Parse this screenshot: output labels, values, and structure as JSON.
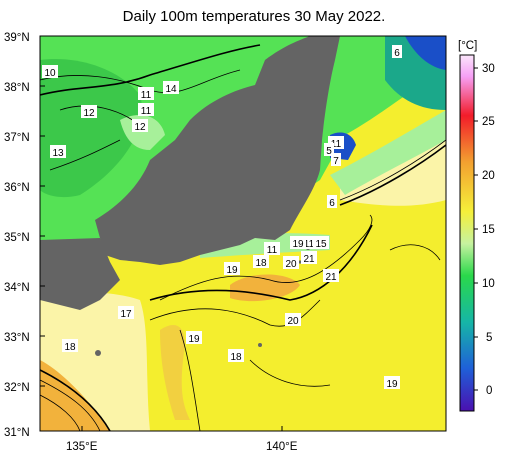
{
  "title": "Daily 100m temperatures 30 May 2022.",
  "map": {
    "lat_ticks": [
      "39°N",
      "38°N",
      "37°N",
      "36°N",
      "35°N",
      "34°N",
      "33°N",
      "32°N",
      "31°N"
    ],
    "lon_ticks": [
      "135°E",
      "140°E"
    ],
    "extent": {
      "lon_min": 134.3,
      "lon_max": 142.8,
      "lat_min": 31,
      "lat_max": 39
    }
  },
  "colorbar": {
    "unit": "[°C]",
    "ticks": [
      "30",
      "25",
      "20",
      "15",
      "10",
      "5",
      "0"
    ],
    "range": [
      -2,
      31
    ]
  },
  "contour_labels": [
    "6",
    "10",
    "11",
    "12",
    "11",
    "14",
    "12",
    "13",
    "11",
    "5",
    "7",
    "6",
    "11",
    "16",
    "11",
    "15",
    "19",
    "18",
    "18",
    "20",
    "21",
    "21",
    "20",
    "17",
    "19",
    "18",
    "19",
    "19"
  ],
  "colors": {
    "land": "#646464",
    "warm_yellow": "#f4ee2e",
    "pale_yellow": "#fbf4a8",
    "orange": "#f2b23c",
    "green": "#55e255",
    "light_green": "#a7f09a",
    "teal": "#1ba88a",
    "blue": "#1a4fc8"
  }
}
